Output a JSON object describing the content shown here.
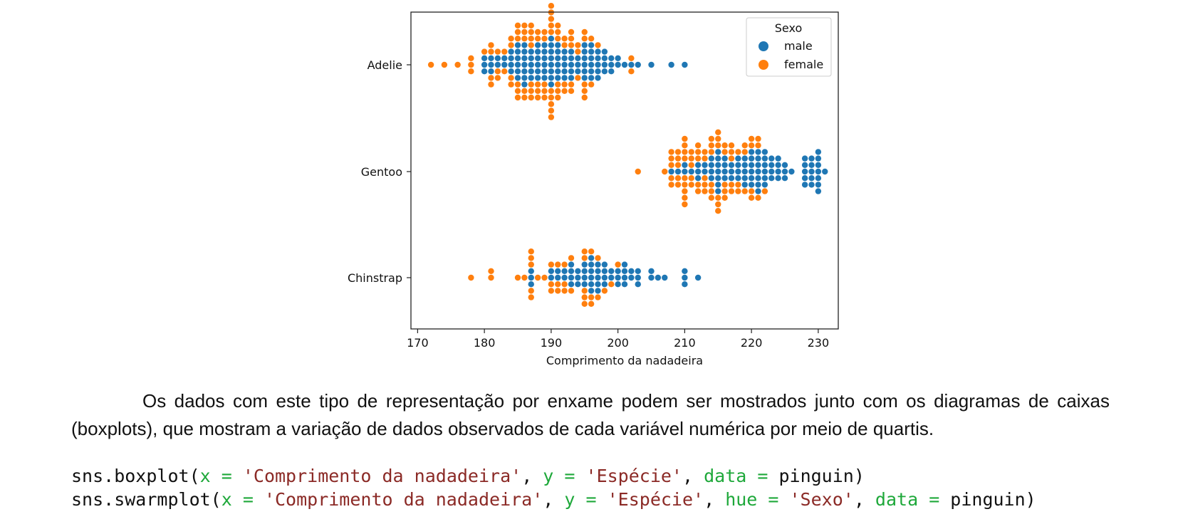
{
  "chart_data": {
    "type": "scatter",
    "subtype": "swarm",
    "xlabel": "Comprimento da nadadeira",
    "ylabel": "",
    "xlim": [
      169,
      233
    ],
    "xticks": [
      170,
      180,
      190,
      200,
      210,
      220,
      230
    ],
    "categories": [
      "Adelie",
      "Gentoo",
      "Chinstrap"
    ],
    "legend": {
      "title": "Sexo",
      "position": "top-right"
    },
    "series": [
      {
        "name": "male",
        "color": "#1f77b4",
        "points": [
          [
            0,
            180,
            3
          ],
          [
            0,
            181,
            3
          ],
          [
            0,
            182,
            2
          ],
          [
            0,
            183,
            2
          ],
          [
            0,
            184,
            4
          ],
          [
            0,
            185,
            6
          ],
          [
            0,
            186,
            7
          ],
          [
            0,
            187,
            5
          ],
          [
            0,
            188,
            6
          ],
          [
            0,
            189,
            6
          ],
          [
            0,
            190,
            8
          ],
          [
            0,
            191,
            6
          ],
          [
            0,
            192,
            5
          ],
          [
            0,
            193,
            5
          ],
          [
            0,
            194,
            3
          ],
          [
            0,
            195,
            6
          ],
          [
            0,
            196,
            6
          ],
          [
            0,
            197,
            5
          ],
          [
            0,
            198,
            4
          ],
          [
            0,
            199,
            3
          ],
          [
            0,
            200,
            2
          ],
          [
            0,
            201,
            1
          ],
          [
            0,
            202,
            1
          ],
          [
            0,
            203,
            1
          ],
          [
            0,
            205,
            1
          ],
          [
            0,
            208,
            1
          ],
          [
            0,
            210,
            1
          ],
          [
            1,
            208,
            1
          ],
          [
            1,
            209,
            1
          ],
          [
            1,
            210,
            2
          ],
          [
            1,
            211,
            1
          ],
          [
            1,
            212,
            3
          ],
          [
            1,
            213,
            2
          ],
          [
            1,
            214,
            4
          ],
          [
            1,
            215,
            7
          ],
          [
            1,
            216,
            4
          ],
          [
            1,
            217,
            3
          ],
          [
            1,
            218,
            4
          ],
          [
            1,
            219,
            5
          ],
          [
            1,
            220,
            6
          ],
          [
            1,
            221,
            7
          ],
          [
            1,
            222,
            6
          ],
          [
            1,
            223,
            4
          ],
          [
            1,
            224,
            4
          ],
          [
            1,
            225,
            3
          ],
          [
            1,
            226,
            1
          ],
          [
            1,
            228,
            5
          ],
          [
            1,
            229,
            5
          ],
          [
            1,
            230,
            7
          ],
          [
            1,
            231,
            1
          ],
          [
            2,
            187,
            3
          ],
          [
            2,
            190,
            2
          ],
          [
            2,
            191,
            2
          ],
          [
            2,
            192,
            2
          ],
          [
            2,
            193,
            4
          ],
          [
            2,
            194,
            3
          ],
          [
            2,
            195,
            4
          ],
          [
            2,
            196,
            6
          ],
          [
            2,
            197,
            5
          ],
          [
            2,
            198,
            4
          ],
          [
            2,
            199,
            2
          ],
          [
            2,
            200,
            3
          ],
          [
            2,
            201,
            4
          ],
          [
            2,
            202,
            2
          ],
          [
            2,
            203,
            3
          ],
          [
            2,
            205,
            2
          ],
          [
            2,
            206,
            1
          ],
          [
            2,
            207,
            1
          ],
          [
            2,
            210,
            3
          ],
          [
            2,
            212,
            1
          ]
        ]
      },
      {
        "name": "female",
        "color": "#ff7f0e",
        "points": [
          [
            0,
            172,
            1
          ],
          [
            0,
            174,
            1
          ],
          [
            0,
            176,
            1
          ],
          [
            0,
            178,
            3
          ],
          [
            0,
            180,
            1
          ],
          [
            0,
            181,
            4
          ],
          [
            0,
            182,
            3
          ],
          [
            0,
            183,
            2
          ],
          [
            0,
            184,
            4
          ],
          [
            0,
            185,
            6
          ],
          [
            0,
            186,
            5
          ],
          [
            0,
            187,
            7
          ],
          [
            0,
            188,
            5
          ],
          [
            0,
            189,
            5
          ],
          [
            0,
            190,
            10
          ],
          [
            0,
            191,
            6
          ],
          [
            0,
            192,
            4
          ],
          [
            0,
            193,
            5
          ],
          [
            0,
            194,
            3
          ],
          [
            0,
            195,
            5
          ],
          [
            0,
            196,
            2
          ],
          [
            0,
            197,
            1
          ],
          [
            0,
            202,
            2
          ],
          [
            1,
            203,
            1
          ],
          [
            1,
            207,
            1
          ],
          [
            1,
            208,
            5
          ],
          [
            1,
            209,
            5
          ],
          [
            1,
            210,
            9
          ],
          [
            1,
            211,
            5
          ],
          [
            1,
            212,
            5
          ],
          [
            1,
            213,
            5
          ],
          [
            1,
            214,
            6
          ],
          [
            1,
            215,
            6
          ],
          [
            1,
            216,
            5
          ],
          [
            1,
            217,
            5
          ],
          [
            1,
            218,
            3
          ],
          [
            1,
            219,
            3
          ],
          [
            1,
            220,
            4
          ],
          [
            1,
            221,
            3
          ],
          [
            1,
            222,
            1
          ],
          [
            2,
            178,
            1
          ],
          [
            2,
            181,
            2
          ],
          [
            2,
            185,
            1
          ],
          [
            2,
            186,
            1
          ],
          [
            2,
            187,
            5
          ],
          [
            2,
            188,
            1
          ],
          [
            2,
            189,
            1
          ],
          [
            2,
            190,
            3
          ],
          [
            2,
            191,
            3
          ],
          [
            2,
            192,
            3
          ],
          [
            2,
            193,
            2
          ],
          [
            2,
            195,
            5
          ],
          [
            2,
            196,
            3
          ],
          [
            2,
            197,
            2
          ],
          [
            2,
            198,
            1
          ],
          [
            2,
            199,
            1
          ],
          [
            2,
            200,
            1
          ]
        ]
      }
    ]
  },
  "paragraph": "Os dados com este tipo de representação por enxame podem ser mostrados junto com os diagramas de caixas (boxplots), que mostram a variação de dados observados de cada variável numérica por meio de quartis.",
  "code": [
    [
      {
        "t": "sns.boxplot(",
        "c": "plain"
      },
      {
        "t": "x",
        "c": "kw"
      },
      {
        "t": " = ",
        "c": "kw"
      },
      {
        "t": "'Comprimento da nadadeira'",
        "c": "str"
      },
      {
        "t": ", ",
        "c": "plain"
      },
      {
        "t": "y",
        "c": "kw"
      },
      {
        "t": " = ",
        "c": "kw"
      },
      {
        "t": "'Espécie'",
        "c": "str"
      },
      {
        "t": ", ",
        "c": "plain"
      },
      {
        "t": "data",
        "c": "kw"
      },
      {
        "t": " = ",
        "c": "kw"
      },
      {
        "t": "pinguin)",
        "c": "plain"
      }
    ],
    [
      {
        "t": "sns.swarmplot(",
        "c": "plain"
      },
      {
        "t": "x",
        "c": "kw"
      },
      {
        "t": " = ",
        "c": "kw"
      },
      {
        "t": "'Comprimento da nadadeira'",
        "c": "str"
      },
      {
        "t": ", ",
        "c": "plain"
      },
      {
        "t": "y",
        "c": "kw"
      },
      {
        "t": " = ",
        "c": "kw"
      },
      {
        "t": "'Espécie'",
        "c": "str"
      },
      {
        "t": ", ",
        "c": "plain"
      },
      {
        "t": "hue",
        "c": "kw"
      },
      {
        "t": " = ",
        "c": "kw"
      },
      {
        "t": "'Sexo'",
        "c": "str"
      },
      {
        "t": ", ",
        "c": "plain"
      },
      {
        "t": "data",
        "c": "kw"
      },
      {
        "t": " = ",
        "c": "kw"
      },
      {
        "t": "pinguin)",
        "c": "plain"
      }
    ]
  ]
}
